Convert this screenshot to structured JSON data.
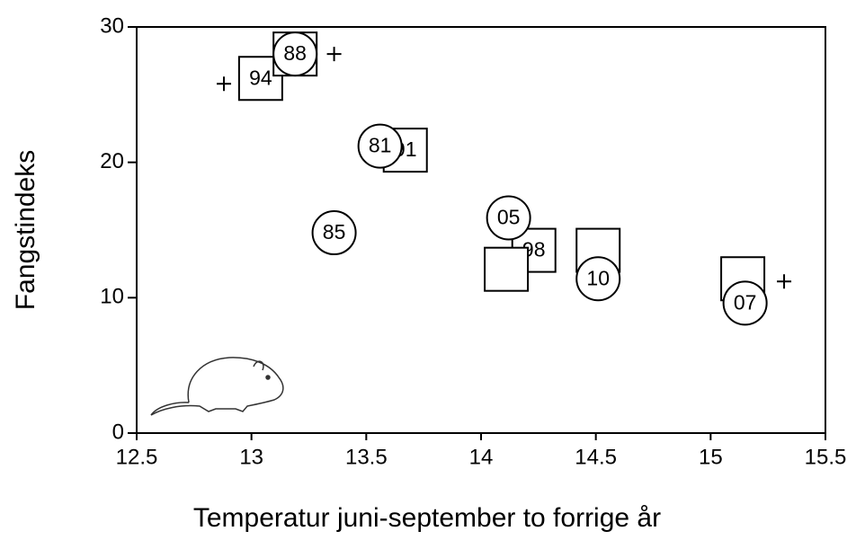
{
  "chart_data": {
    "type": "scatter",
    "x_label": "Temperatur juni-september to forrige år",
    "y_label": "Fangstindeks",
    "xlim": [
      12.5,
      15.5
    ],
    "xticks": [
      12.5,
      13,
      13.5,
      14,
      14.5,
      15,
      15.5
    ],
    "ylim": [
      0,
      30
    ],
    "yticks": [
      0,
      10,
      20,
      30
    ],
    "grid": false,
    "series": [
      {
        "marker": "square",
        "color": "#000000",
        "x": [
          13.04,
          13.19,
          13.67,
          14.23,
          14.11,
          14.51,
          15.14
        ],
        "y": [
          26.2,
          28.0,
          20.9,
          13.5,
          12.1,
          13.5,
          11.4
        ],
        "labels": [
          "94",
          null,
          "91",
          "98",
          null,
          null,
          null
        ]
      },
      {
        "marker": "circle",
        "color": "#000000",
        "x": [
          13.19,
          13.56,
          13.36,
          14.12,
          14.51,
          15.15
        ],
        "y": [
          28.0,
          21.2,
          14.8,
          15.9,
          11.4,
          9.6
        ],
        "labels": [
          "88",
          "81",
          "85",
          "05",
          "10",
          "07"
        ]
      },
      {
        "marker": "plus",
        "color": "#000000",
        "x": [
          12.88,
          13.36,
          15.32
        ],
        "y": [
          25.8,
          28.0,
          11.2
        ]
      }
    ]
  }
}
